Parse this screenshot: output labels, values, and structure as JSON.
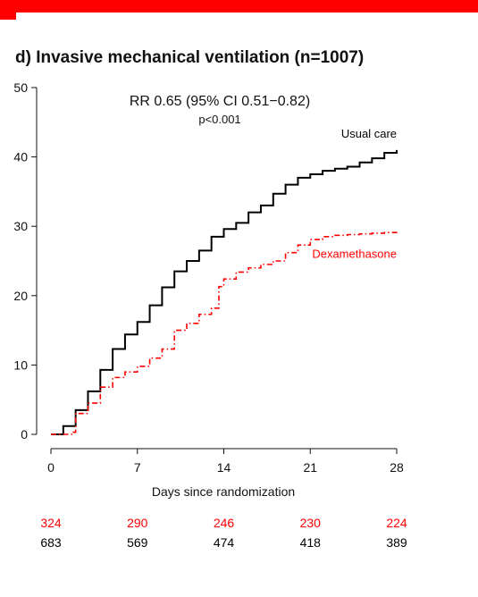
{
  "chart_data": {
    "type": "line",
    "title": "d) Invasive mechanical ventilation (n=1007)",
    "annotation": {
      "rr": "RR 0.65 (95% CI 0.51−0.82)",
      "p": "p<0.001"
    },
    "xlabel": "Days since randomization",
    "ylabel": "",
    "xlim": [
      0,
      28
    ],
    "ylim": [
      0,
      50
    ],
    "xticks": [
      "0",
      "7",
      "14",
      "21",
      "28"
    ],
    "yticks": [
      "0",
      "10",
      "20",
      "30",
      "40",
      "50"
    ],
    "series": [
      {
        "name": "Usual care",
        "color": "#000000",
        "line_style": "solid",
        "steps": [
          [
            0,
            0
          ],
          [
            1,
            1.2
          ],
          [
            2,
            3.5
          ],
          [
            3,
            6.2
          ],
          [
            4,
            9.3
          ],
          [
            5,
            12.3
          ],
          [
            6,
            14.4
          ],
          [
            7,
            16.2
          ],
          [
            8,
            18.6
          ],
          [
            9,
            21.2
          ],
          [
            10,
            23.5
          ],
          [
            11,
            25
          ],
          [
            12,
            26.5
          ],
          [
            13,
            28.5
          ],
          [
            14,
            29.6
          ],
          [
            15,
            30.5
          ],
          [
            16,
            32
          ],
          [
            17,
            33
          ],
          [
            18,
            34.7
          ],
          [
            19,
            36
          ],
          [
            20,
            37
          ],
          [
            21,
            37.5
          ],
          [
            22,
            38
          ],
          [
            23,
            38.3
          ],
          [
            24,
            38.6
          ],
          [
            25,
            39.2
          ],
          [
            26,
            39.8
          ],
          [
            27,
            40.6
          ],
          [
            28,
            41
          ]
        ]
      },
      {
        "name": "Dexamethasone",
        "color": "#ff0000",
        "line_style": "dashdot",
        "steps": [
          [
            0,
            0
          ],
          [
            1.8,
            0.3
          ],
          [
            2,
            3
          ],
          [
            3,
            4.5
          ],
          [
            4,
            6.8
          ],
          [
            5,
            8.2
          ],
          [
            6,
            9
          ],
          [
            7,
            9.8
          ],
          [
            8,
            11
          ],
          [
            9,
            12.3
          ],
          [
            10,
            15
          ],
          [
            11,
            16
          ],
          [
            12,
            17.3
          ],
          [
            13,
            18.2
          ],
          [
            13.6,
            21.3
          ],
          [
            14,
            22.4
          ],
          [
            15,
            23.4
          ],
          [
            16,
            24
          ],
          [
            17,
            24.5
          ],
          [
            18,
            25
          ],
          [
            19,
            26.2
          ],
          [
            20,
            27.3
          ],
          [
            21,
            28.1
          ],
          [
            22,
            28.5
          ],
          [
            23,
            28.7
          ],
          [
            24,
            28.8
          ],
          [
            25,
            28.9
          ],
          [
            26,
            29
          ],
          [
            27,
            29.1
          ],
          [
            28,
            29.3
          ]
        ]
      }
    ],
    "risk_table": {
      "x": [
        0,
        7,
        14,
        21,
        28
      ],
      "rows": [
        {
          "color": "#ff0000",
          "values": [
            "324",
            "290",
            "246",
            "230",
            "224"
          ]
        },
        {
          "color": "#000000",
          "values": [
            "683",
            "569",
            "474",
            "418",
            "389"
          ]
        }
      ]
    }
  }
}
